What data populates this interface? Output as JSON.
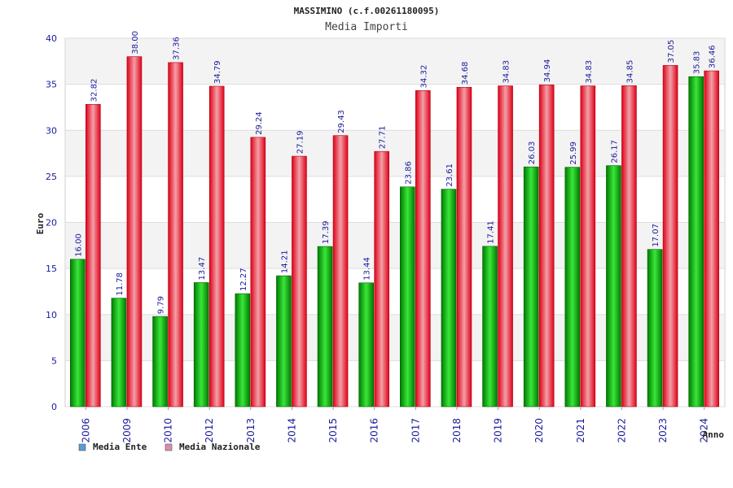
{
  "chart_data": {
    "type": "bar",
    "title": "MASSIMINO (c.f.00261180095)",
    "subtitle": "Media Importi",
    "ylabel": "Euro",
    "xlabel": "Anno",
    "ylim": [
      0,
      40
    ],
    "yticks": [
      "0",
      "5",
      "10",
      "15",
      "20",
      "25",
      "30",
      "35",
      "40"
    ],
    "grid": true,
    "legend_position": "bottom-left",
    "categories": [
      "2006",
      "2009",
      "2010",
      "2012",
      "2013",
      "2014",
      "2015",
      "2016",
      "2017",
      "2018",
      "2019",
      "2020",
      "2021",
      "2022",
      "2023",
      "2024"
    ],
    "series": [
      {
        "name": "Media Ente",
        "color": "#00a000",
        "legend_color": "#5b9bd5",
        "values": [
          16.0,
          11.78,
          9.79,
          13.47,
          12.27,
          14.21,
          17.39,
          13.44,
          23.86,
          23.61,
          17.41,
          26.03,
          25.99,
          26.17,
          17.07,
          35.83
        ],
        "labels": [
          "16.00",
          "11.78",
          "9.79",
          "13.47",
          "12.27",
          "14.21",
          "17.39",
          "13.44",
          "23.86",
          "23.61",
          "17.41",
          "26.03",
          "25.99",
          "26.17",
          "17.07",
          "35.83"
        ]
      },
      {
        "name": "Media Nazionale",
        "color": "#e00018",
        "legend_color": "#d98cb3",
        "values": [
          32.82,
          38.0,
          37.36,
          34.79,
          29.24,
          27.19,
          29.43,
          27.71,
          34.32,
          34.68,
          34.83,
          34.94,
          34.83,
          34.85,
          37.05,
          36.46
        ],
        "labels": [
          "32.82",
          "38.00",
          "37.36",
          "34.79",
          "29.24",
          "27.19",
          "29.43",
          "27.71",
          "34.32",
          "34.68",
          "34.83",
          "34.94",
          "34.83",
          "34.85",
          "37.05",
          "36.46"
        ]
      }
    ]
  }
}
